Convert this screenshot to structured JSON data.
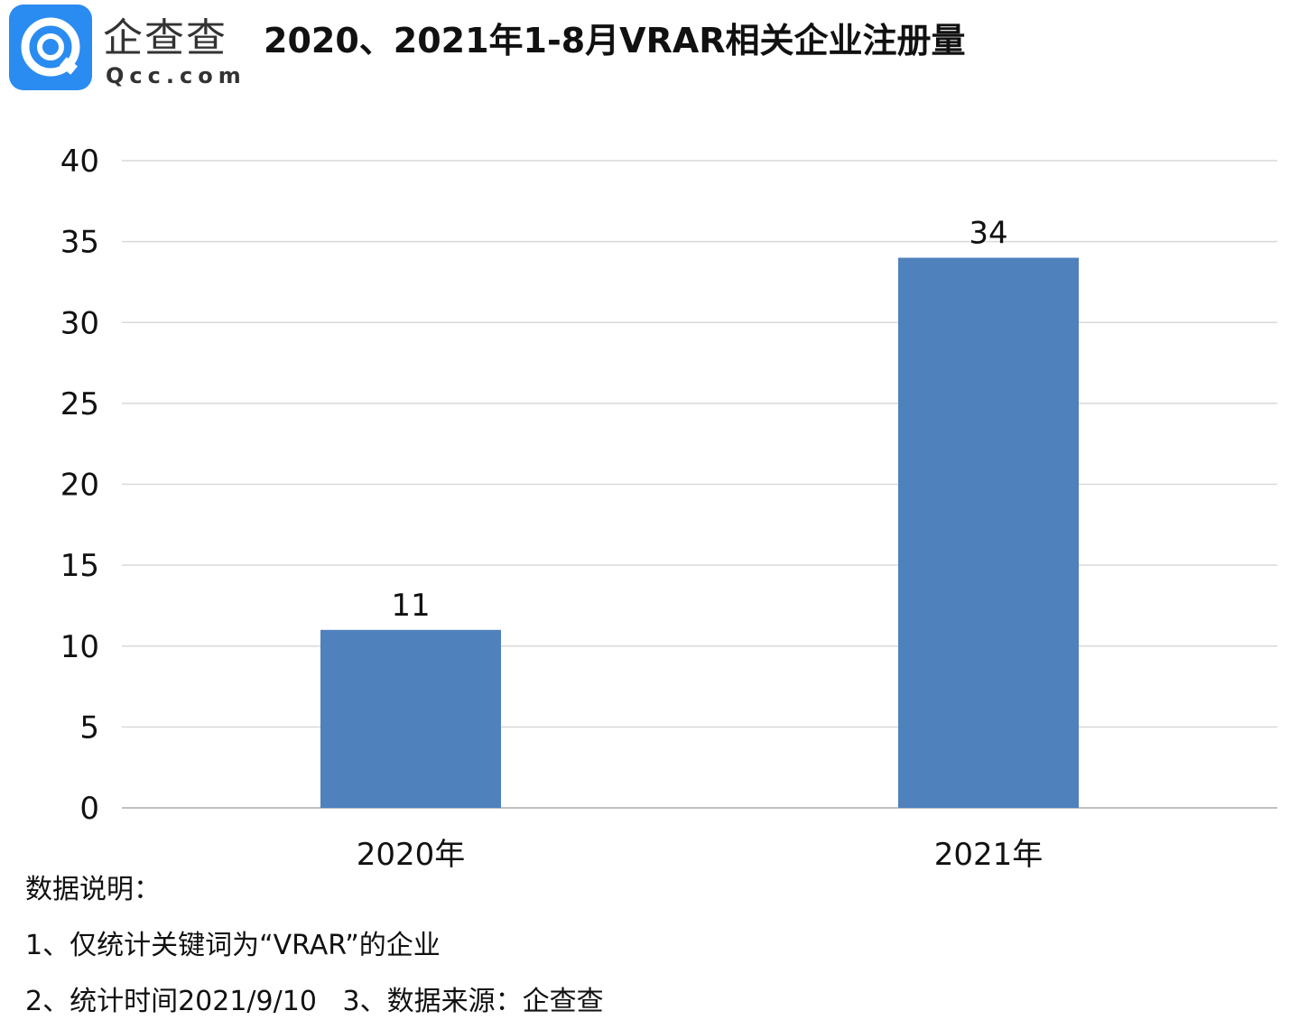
{
  "logo": {
    "cn": "企查查",
    "en": "Qcc.com"
  },
  "chart_data": {
    "type": "bar",
    "title": "2020、2021年1-8月VRAR相关企业注册量",
    "categories": [
      "2020年",
      "2021年"
    ],
    "values": [
      11,
      34
    ],
    "data_labels": [
      "11",
      "34"
    ],
    "xlabel": "",
    "ylabel": "",
    "ylim": [
      0,
      40
    ],
    "yticks": [
      0,
      5,
      10,
      15,
      20,
      25,
      30,
      35,
      40
    ],
    "grid": true,
    "bar_color": "#4f81bd"
  },
  "notes": {
    "heading": "数据说明：",
    "line1": "1、仅统计关键词为“VRAR”的企业",
    "line2": "2、统计时间2021/9/10   3、数据来源：企查查"
  }
}
